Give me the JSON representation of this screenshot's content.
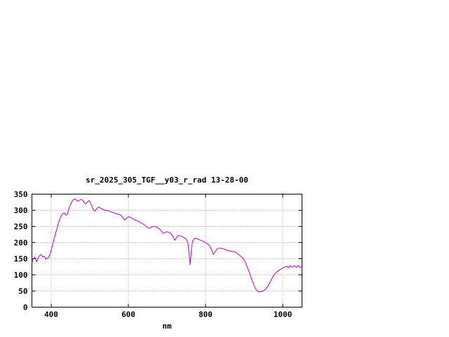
{
  "chart_data": {
    "type": "line",
    "title": "sr_2025_305_TGF__y03_r_rad 13-28-00",
    "xlabel": "nm",
    "ylabel": "",
    "xlim": [
      350,
      1050
    ],
    "ylim": [
      0,
      350
    ],
    "xticks": [
      400,
      600,
      800,
      1000
    ],
    "yticks": [
      0,
      50,
      100,
      150,
      200,
      250,
      300,
      350
    ],
    "grid": true,
    "grid_color": "#999999",
    "border_color": "#000000",
    "background_color": "#ffffff",
    "legend": "none",
    "series": [
      {
        "color": "#c000c0",
        "points": [
          [
            350,
            137
          ],
          [
            354,
            150
          ],
          [
            358,
            155
          ],
          [
            362,
            140
          ],
          [
            366,
            152
          ],
          [
            370,
            160
          ],
          [
            374,
            163
          ],
          [
            378,
            155
          ],
          [
            382,
            158
          ],
          [
            386,
            148
          ],
          [
            390,
            152
          ],
          [
            394,
            155
          ],
          [
            398,
            168
          ],
          [
            402,
            185
          ],
          [
            406,
            205
          ],
          [
            410,
            222
          ],
          [
            414,
            240
          ],
          [
            418,
            258
          ],
          [
            422,
            272
          ],
          [
            426,
            283
          ],
          [
            430,
            290
          ],
          [
            434,
            292
          ],
          [
            438,
            285
          ],
          [
            442,
            288
          ],
          [
            446,
            305
          ],
          [
            450,
            318
          ],
          [
            454,
            328
          ],
          [
            458,
            333
          ],
          [
            462,
            335
          ],
          [
            466,
            330
          ],
          [
            470,
            328
          ],
          [
            474,
            332
          ],
          [
            478,
            334
          ],
          [
            482,
            330
          ],
          [
            486,
            322
          ],
          [
            490,
            320
          ],
          [
            494,
            326
          ],
          [
            498,
            330
          ],
          [
            502,
            322
          ],
          [
            506,
            310
          ],
          [
            510,
            300
          ],
          [
            514,
            298
          ],
          [
            518,
            305
          ],
          [
            522,
            310
          ],
          [
            526,
            308
          ],
          [
            530,
            305
          ],
          [
            534,
            303
          ],
          [
            538,
            300
          ],
          [
            542,
            300
          ],
          [
            546,
            298
          ],
          [
            550,
            298
          ],
          [
            555,
            295
          ],
          [
            560,
            293
          ],
          [
            565,
            291
          ],
          [
            570,
            289
          ],
          [
            575,
            287
          ],
          [
            580,
            285
          ],
          [
            585,
            278
          ],
          [
            590,
            270
          ],
          [
            595,
            275
          ],
          [
            600,
            280
          ],
          [
            605,
            278
          ],
          [
            610,
            275
          ],
          [
            615,
            271
          ],
          [
            620,
            268
          ],
          [
            625,
            266
          ],
          [
            630,
            263
          ],
          [
            635,
            259
          ],
          [
            640,
            256
          ],
          [
            645,
            251
          ],
          [
            650,
            246
          ],
          [
            655,
            244
          ],
          [
            660,
            249
          ],
          [
            665,
            250
          ],
          [
            670,
            249
          ],
          [
            675,
            247
          ],
          [
            680,
            243
          ],
          [
            685,
            236
          ],
          [
            690,
            229
          ],
          [
            695,
            231
          ],
          [
            700,
            234
          ],
          [
            705,
            231
          ],
          [
            710,
            228
          ],
          [
            715,
            220
          ],
          [
            720,
            207
          ],
          [
            725,
            216
          ],
          [
            730,
            222
          ],
          [
            735,
            220
          ],
          [
            740,
            218
          ],
          [
            745,
            214
          ],
          [
            750,
            211
          ],
          [
            754,
            200
          ],
          [
            757,
            170
          ],
          [
            760,
            131
          ],
          [
            763,
            172
          ],
          [
            766,
            203
          ],
          [
            770,
            212
          ],
          [
            775,
            213
          ],
          [
            780,
            211
          ],
          [
            785,
            208
          ],
          [
            790,
            206
          ],
          [
            795,
            203
          ],
          [
            800,
            199
          ],
          [
            805,
            196
          ],
          [
            810,
            191
          ],
          [
            815,
            180
          ],
          [
            820,
            163
          ],
          [
            825,
            172
          ],
          [
            830,
            181
          ],
          [
            835,
            183
          ],
          [
            840,
            182
          ],
          [
            845,
            181
          ],
          [
            850,
            179
          ],
          [
            855,
            176
          ],
          [
            860,
            174
          ],
          [
            865,
            174
          ],
          [
            870,
            172
          ],
          [
            875,
            171
          ],
          [
            880,
            168
          ],
          [
            885,
            164
          ],
          [
            890,
            159
          ],
          [
            895,
            154
          ],
          [
            900,
            146
          ],
          [
            905,
            133
          ],
          [
            910,
            118
          ],
          [
            915,
            102
          ],
          [
            920,
            85
          ],
          [
            925,
            68
          ],
          [
            930,
            56
          ],
          [
            935,
            49
          ],
          [
            940,
            47
          ],
          [
            945,
            48
          ],
          [
            950,
            51
          ],
          [
            955,
            55
          ],
          [
            960,
            62
          ],
          [
            965,
            72
          ],
          [
            970,
            84
          ],
          [
            975,
            96
          ],
          [
            980,
            104
          ],
          [
            985,
            110
          ],
          [
            990,
            114
          ],
          [
            995,
            118
          ],
          [
            1000,
            121
          ],
          [
            1005,
            124
          ],
          [
            1010,
            127
          ],
          [
            1015,
            122
          ],
          [
            1020,
            128
          ],
          [
            1025,
            124
          ],
          [
            1030,
            129
          ],
          [
            1035,
            123
          ],
          [
            1040,
            129
          ],
          [
            1045,
            122
          ],
          [
            1050,
            127
          ]
        ]
      }
    ]
  }
}
